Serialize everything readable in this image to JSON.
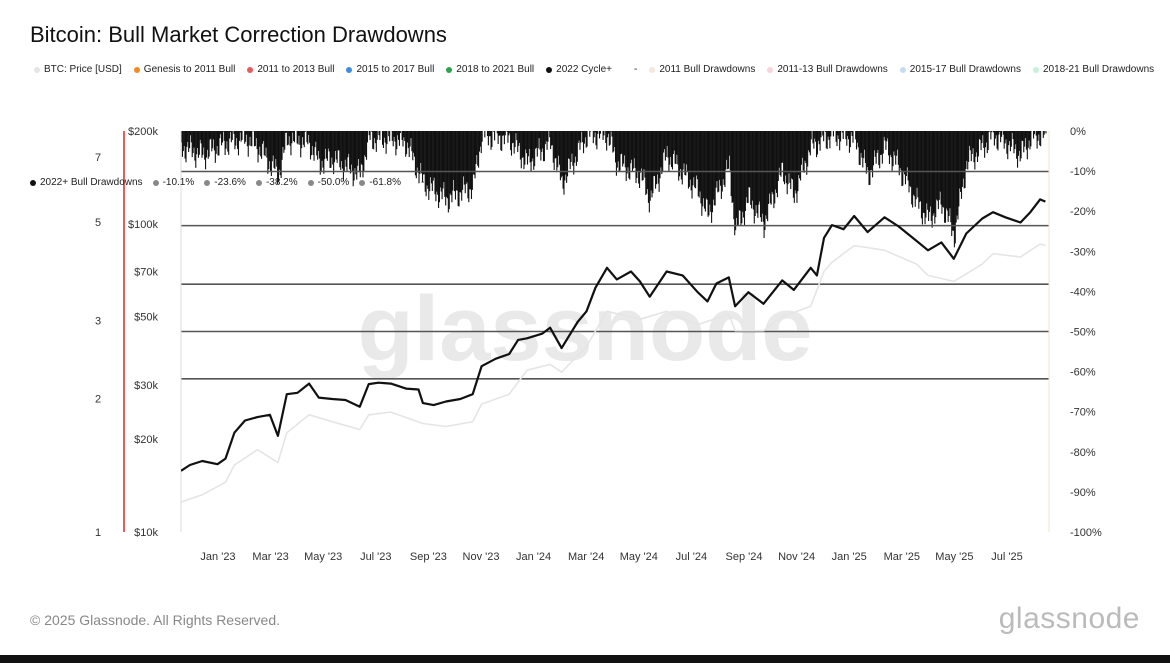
{
  "chart_data": {
    "type": "line",
    "title": "Bitcoin: Bull Market Correction Drawdowns",
    "legend_top": [
      {
        "name": "BTC: Price [USD]",
        "color": "#e5e5e5"
      },
      {
        "name": "Genesis to 2011 Bull",
        "color": "#f08c1e"
      },
      {
        "name": "2011 to 2013 Bull",
        "color": "#e85c5c"
      },
      {
        "name": "2015 to 2017 Bull",
        "color": "#3d8ee0"
      },
      {
        "name": "2018 to 2021 Bull",
        "color": "#2ca44e"
      },
      {
        "name": "2022 Cycle+",
        "color": "#111111"
      },
      {
        "name": "-",
        "color": "#ffffff"
      },
      {
        "name": "2011 Bull Drawdowns",
        "color": "#f6e7da"
      },
      {
        "name": "2011-13 Bull Drawdowns",
        "color": "#f8d3dc"
      },
      {
        "name": "2015-17 Bull Drawdowns",
        "color": "#c5dcf2"
      },
      {
        "name": "2018-21 Bull Drawdowns",
        "color": "#c7efd9"
      }
    ],
    "legend_row2": [
      {
        "name": "2022+ Bull Drawdowns",
        "color": "#111111"
      },
      {
        "name": "-10.1%",
        "color": "#888888"
      },
      {
        "name": "-23.6%",
        "color": "#888888"
      },
      {
        "name": "-38.2%",
        "color": "#888888"
      },
      {
        "name": "-50.0%",
        "color": "#888888"
      },
      {
        "name": "-61.8%",
        "color": "#888888"
      },
      {
        "name": "-",
        "color": "#ffffff"
      }
    ],
    "x_ticks": [
      "Jan '23",
      "Mar '23",
      "May '23",
      "Jul '23",
      "Sep '23",
      "Nov '23",
      "Jan '24",
      "Mar '24",
      "May '24",
      "Jul '24",
      "Sep '24",
      "Nov '24",
      "Jan '25",
      "Mar '25",
      "May '25",
      "Jul '25"
    ],
    "y_price_ticks": [
      {
        "label": "$200k",
        "value": 200000
      },
      {
        "label": "$100k",
        "value": 100000
      },
      {
        "label": "$70k",
        "value": 70000
      },
      {
        "label": "$50k",
        "value": 50000
      },
      {
        "label": "$30k",
        "value": 30000
      },
      {
        "label": "$20k",
        "value": 20000
      },
      {
        "label": "$10k",
        "value": 10000
      }
    ],
    "price_range": [
      10000,
      200000
    ],
    "y_multiple_ticks": [
      {
        "label": "7",
        "value": 7
      },
      {
        "label": "5",
        "value": 5
      },
      {
        "label": "3",
        "value": 3
      },
      {
        "label": "2",
        "value": 2
      },
      {
        "label": "1",
        "value": 1
      }
    ],
    "multiple_range": [
      1,
      7
    ],
    "y_drawdown_ticks": [
      "0%",
      "-10%",
      "-20%",
      "-30%",
      "-40%",
      "-50%",
      "-60%",
      "-70%",
      "-80%",
      "-90%",
      "-100%"
    ],
    "drawdown_range": [
      -100,
      0
    ],
    "fib_levels": [
      -10.1,
      -23.6,
      -38.2,
      -50.0,
      -61.8
    ],
    "series": [
      {
        "name": "2022 Cycle+",
        "color": "#111111",
        "x": [
          "2022-11-21",
          "2022-12-01",
          "2022-12-15",
          "2023-01-01",
          "2023-01-10",
          "2023-01-20",
          "2023-02-01",
          "2023-02-15",
          "2023-03-01",
          "2023-03-10",
          "2023-03-20",
          "2023-04-01",
          "2023-04-14",
          "2023-04-25",
          "2023-05-10",
          "2023-05-25",
          "2023-06-10",
          "2023-06-20",
          "2023-07-01",
          "2023-07-15",
          "2023-08-01",
          "2023-08-15",
          "2023-08-20",
          "2023-09-01",
          "2023-09-15",
          "2023-10-01",
          "2023-10-15",
          "2023-10-25",
          "2023-11-10",
          "2023-11-25",
          "2023-12-05",
          "2023-12-15",
          "2024-01-01",
          "2024-01-10",
          "2024-01-23",
          "2024-02-10",
          "2024-02-20",
          "2024-03-01",
          "2024-03-14",
          "2024-03-25",
          "2024-04-10",
          "2024-04-20",
          "2024-05-01",
          "2024-05-20",
          "2024-06-07",
          "2024-06-24",
          "2024-07-05",
          "2024-07-15",
          "2024-07-29",
          "2024-08-05",
          "2024-08-20",
          "2024-09-06",
          "2024-09-27",
          "2024-10-10",
          "2024-10-29",
          "2024-11-05",
          "2024-11-13",
          "2024-11-22",
          "2024-12-05",
          "2024-12-17",
          "2025-01-01",
          "2025-01-20",
          "2025-02-05",
          "2025-02-25",
          "2025-03-10",
          "2025-03-25",
          "2025-04-08",
          "2025-04-22",
          "2025-05-10",
          "2025-05-22",
          "2025-06-05",
          "2025-06-22",
          "2025-07-03",
          "2025-07-14",
          "2025-07-20"
        ],
        "values": [
          15800,
          16500,
          17000,
          16600,
          17300,
          21000,
          23000,
          23600,
          24000,
          20500,
          28000,
          28300,
          30300,
          27300,
          27000,
          26800,
          25500,
          30200,
          30500,
          30300,
          29200,
          29000,
          26200,
          25800,
          26500,
          27000,
          28000,
          34500,
          36500,
          37800,
          42000,
          42500,
          44000,
          46000,
          39500,
          48000,
          52000,
          62000,
          72000,
          66000,
          70000,
          65000,
          58000,
          70000,
          68000,
          60000,
          56000,
          64000,
          67000,
          54000,
          60000,
          55000,
          65500,
          61000,
          72000,
          68000,
          90000,
          99000,
          96000,
          106000,
          94000,
          105000,
          98000,
          88000,
          82000,
          87000,
          77000,
          93000,
          104000,
          109000,
          105000,
          101000,
          109000,
          120000,
          118000
        ]
      },
      {
        "name": "BTC: Price [USD]",
        "color": "#e5e5e5",
        "x": [
          "2022-11-21",
          "2022-12-15",
          "2023-01-10",
          "2023-01-20",
          "2023-02-15",
          "2023-03-10",
          "2023-03-20",
          "2023-04-14",
          "2023-05-10",
          "2023-06-10",
          "2023-06-20",
          "2023-07-15",
          "2023-08-20",
          "2023-09-15",
          "2023-10-15",
          "2023-10-25",
          "2023-11-25",
          "2023-12-15",
          "2024-01-10",
          "2024-01-23",
          "2024-02-20",
          "2024-03-14",
          "2024-04-20",
          "2024-05-20",
          "2024-06-24",
          "2024-07-29",
          "2024-08-05",
          "2024-09-06",
          "2024-09-27",
          "2024-10-29",
          "2024-11-13",
          "2024-11-22",
          "2024-12-17",
          "2025-01-20",
          "2025-02-25",
          "2025-03-10",
          "2025-04-08",
          "2025-05-10",
          "2025-05-22",
          "2025-06-22",
          "2025-07-14",
          "2025-07-20"
        ],
        "values": [
          12500,
          13200,
          14500,
          16500,
          18500,
          16800,
          21000,
          24000,
          22800,
          21500,
          24000,
          24500,
          22500,
          22000,
          22800,
          26000,
          28000,
          33500,
          35000,
          33000,
          40000,
          52000,
          49000,
          52000,
          47000,
          51000,
          45000,
          45000,
          50000,
          54000,
          70000,
          75000,
          85000,
          82000,
          74000,
          68000,
          65000,
          74000,
          80000,
          78000,
          86000,
          85000
        ]
      }
    ],
    "drawdown_series": {
      "name": "2022+ Bull Drawdowns",
      "color": "#111111",
      "x": [
        "2022-11-21",
        "2022-12-15",
        "2023-01-10",
        "2023-02-01",
        "2023-02-15",
        "2023-03-10",
        "2023-03-20",
        "2023-04-14",
        "2023-04-25",
        "2023-05-10",
        "2023-06-10",
        "2023-06-20",
        "2023-07-15",
        "2023-08-01",
        "2023-08-20",
        "2023-09-15",
        "2023-10-15",
        "2023-10-25",
        "2023-11-25",
        "2023-12-15",
        "2024-01-10",
        "2024-01-23",
        "2024-02-20",
        "2024-03-14",
        "2024-03-25",
        "2024-04-20",
        "2024-05-01",
        "2024-05-20",
        "2024-06-24",
        "2024-07-05",
        "2024-07-29",
        "2024-08-05",
        "2024-08-20",
        "2024-09-06",
        "2024-09-27",
        "2024-10-10",
        "2024-10-29",
        "2024-11-13",
        "2024-11-22",
        "2024-12-17",
        "2025-01-01",
        "2025-01-20",
        "2025-02-05",
        "2025-02-25",
        "2025-03-10",
        "2025-03-25",
        "2025-04-08",
        "2025-04-22",
        "2025-05-10",
        "2025-05-22",
        "2025-06-05",
        "2025-06-22",
        "2025-07-03",
        "2025-07-14",
        "2025-07-20"
      ],
      "values": [
        -4,
        -6,
        -3,
        -2,
        -4,
        -11,
        -2,
        -3,
        -8,
        -7,
        -11,
        -2,
        -2,
        -3,
        -13,
        -17,
        -14,
        -1,
        -2,
        -8,
        -3,
        -13,
        -1,
        -1,
        -8,
        -11,
        -17,
        -6,
        -15,
        -21,
        -9,
        -25,
        -17,
        -23,
        -10,
        -16,
        -4,
        -2,
        -1,
        -2,
        -11,
        -4,
        -9,
        -18,
        -22,
        -18,
        -26,
        -8,
        -4,
        -1,
        -3,
        -6,
        -2,
        -1,
        -2
      ]
    },
    "footer": "© 2025 Glassnode. All Rights Reserved.",
    "watermark": "glassnode",
    "brand": "glassnode"
  }
}
